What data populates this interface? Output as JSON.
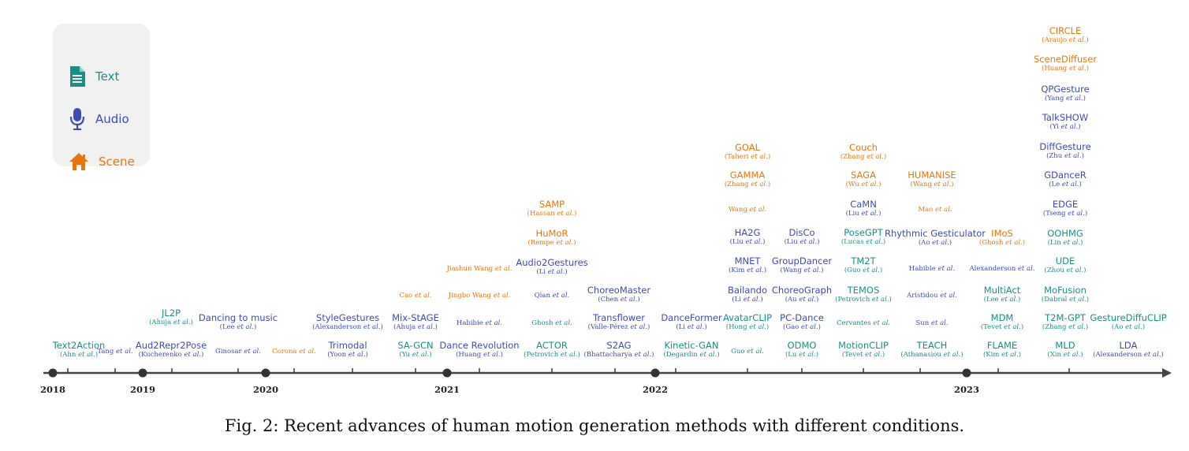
{
  "legend": {
    "items": [
      {
        "label": "Text",
        "icon": "document-icon",
        "color": "#1a8f87"
      },
      {
        "label": "Audio",
        "icon": "microphone-icon",
        "color": "#3d4bb5"
      },
      {
        "label": "Scene",
        "icon": "house-icon",
        "color": "#e8760f"
      }
    ]
  },
  "colors": {
    "text": "#1a8f87",
    "audio": "#3d4bb5",
    "scene": "#e8760f",
    "axis": "#444444"
  },
  "timeline": {
    "years": [
      "2018",
      "2019",
      "2020",
      "2021",
      "2022",
      "2023"
    ],
    "methods": [
      {
        "name": "Text2Action",
        "author": "Ahn",
        "etal": "et al.",
        "type": "text"
      },
      {
        "name": "",
        "author": "Tang",
        "etal": "et al.",
        "type": "audio"
      },
      {
        "name": "Aud2Repr2Pose",
        "author": "Kucherenko",
        "etal": "et al.",
        "type": "audio"
      },
      {
        "name": "JL2P",
        "author": "Ahuja",
        "etal": "et al.",
        "type": "text"
      },
      {
        "name": "Dancing to music",
        "author": "Lee",
        "etal": "et al.",
        "type": "audio"
      },
      {
        "name": "",
        "author": "Ginosar",
        "etal": "et al.",
        "type": "audio"
      },
      {
        "name": "",
        "author": "Corona",
        "etal": "et al.",
        "type": "scene"
      },
      {
        "name": "Trimodal",
        "author": "Yoon",
        "etal": "et al.",
        "type": "audio"
      },
      {
        "name": "StyleGestures",
        "author": "Alexanderson",
        "etal": "et al.",
        "type": "audio"
      },
      {
        "name": "SA-GCN",
        "author": "Yu",
        "etal": "et al.",
        "type": "text"
      },
      {
        "name": "Mix-StAGE",
        "author": "Ahuja",
        "etal": "et al.",
        "type": "audio"
      },
      {
        "name": "",
        "author": "Cao",
        "etal": "et al.",
        "type": "scene"
      },
      {
        "name": "Dance Revolution",
        "author": "Huang",
        "etal": "et al.",
        "type": "audio"
      },
      {
        "name": "",
        "author": "Habibie",
        "etal": "et al.",
        "type": "audio"
      },
      {
        "name": "",
        "author": "Jingbo Wang",
        "etal": "et al.",
        "type": "scene"
      },
      {
        "name": "",
        "author": "Jiashun Wang",
        "etal": "et al.",
        "type": "scene"
      },
      {
        "name": "ACTOR",
        "author": "Petrovich",
        "etal": "et al.",
        "type": "text"
      },
      {
        "name": "",
        "author": "Ghosh",
        "etal": "et al.",
        "type": "text"
      },
      {
        "name": "",
        "author": "Qian",
        "etal": "et al.",
        "type": "audio"
      },
      {
        "name": "Audio2Gestures",
        "author": "Li",
        "etal": "et al.",
        "type": "audio"
      },
      {
        "name": "HuMoR",
        "author": "Rempe",
        "etal": "et al.",
        "type": "scene"
      },
      {
        "name": "SAMP",
        "author": "Hassan",
        "etal": "et al.",
        "type": "scene"
      },
      {
        "name": "S2AG",
        "author": "Bhattacharya",
        "etal": "et al.",
        "type": "audio"
      },
      {
        "name": "Transflower",
        "author": "Valle-Pérez",
        "etal": "et al.",
        "type": "audio"
      },
      {
        "name": "ChoreoMaster",
        "author": "Chen",
        "etal": "et al.",
        "type": "audio"
      },
      {
        "name": "Kinetic-GAN",
        "author": "Degardin",
        "etal": "et al.",
        "type": "text"
      },
      {
        "name": "DanceFormer",
        "author": "Li",
        "etal": "et al.",
        "type": "audio"
      },
      {
        "name": "",
        "author": "Guo",
        "etal": "et al.",
        "type": "text"
      },
      {
        "name": "AvatarCLIP",
        "author": "Hong",
        "etal": "et al.",
        "type": "text"
      },
      {
        "name": "Bailando",
        "author": "Li",
        "etal": "et al.",
        "type": "audio"
      },
      {
        "name": "MNET",
        "author": "Kim",
        "etal": "et al.",
        "type": "audio"
      },
      {
        "name": "HA2G",
        "author": "Liu",
        "etal": "et al.",
        "type": "audio"
      },
      {
        "name": "",
        "author": "Wang",
        "etal": "et al.",
        "type": "scene"
      },
      {
        "name": "GAMMA",
        "author": "Zhang",
        "etal": "et al.",
        "type": "scene"
      },
      {
        "name": "GOAL",
        "author": "Taheri",
        "etal": "et al.",
        "type": "scene"
      },
      {
        "name": "ODMO",
        "author": "Lu",
        "etal": "et al.",
        "type": "text"
      },
      {
        "name": "PC-Dance",
        "author": "Gao",
        "etal": "et al.",
        "type": "audio"
      },
      {
        "name": "ChoreoGraph",
        "author": "Au",
        "etal": "et al.",
        "type": "audio"
      },
      {
        "name": "GroupDancer",
        "author": "Wang",
        "etal": "et al.",
        "type": "audio"
      },
      {
        "name": "DisCo",
        "author": "Liu",
        "etal": "et al.",
        "type": "audio"
      },
      {
        "name": "MotionCLIP",
        "author": "Tevet",
        "etal": "et al.",
        "type": "text"
      },
      {
        "name": "",
        "author": "Cervantes",
        "etal": "et al.",
        "type": "text"
      },
      {
        "name": "TEMOS",
        "author": "Petrovich",
        "etal": "et al.",
        "type": "text"
      },
      {
        "name": "TM2T",
        "author": "Guo",
        "etal": "et al.",
        "type": "text"
      },
      {
        "name": "PoseGPT",
        "author": "Lucas",
        "etal": "et al.",
        "type": "text"
      },
      {
        "name": "CaMN",
        "author": "Liu",
        "etal": "et al.",
        "type": "audio"
      },
      {
        "name": "SAGA",
        "author": "Wu",
        "etal": "et al.",
        "type": "scene"
      },
      {
        "name": "Couch",
        "author": "Zhang",
        "etal": "et al.",
        "type": "scene"
      },
      {
        "name": "TEACH",
        "author": "Athanasiou",
        "etal": "et al.",
        "type": "text"
      },
      {
        "name": "",
        "author": "Sun",
        "etal": "et al.",
        "type": "audio"
      },
      {
        "name": "",
        "author": "Aristidou",
        "etal": "et al.",
        "type": "audio"
      },
      {
        "name": "",
        "author": "Habibie",
        "etal": "et al.",
        "type": "audio"
      },
      {
        "name": "Rhythmic Gesticulator",
        "author": "Ao",
        "etal": "et al.",
        "type": "audio"
      },
      {
        "name": "",
        "author": "Mao",
        "etal": "et al.",
        "type": "scene"
      },
      {
        "name": "HUMANISE",
        "author": "Wang",
        "etal": "et al.",
        "type": "scene"
      },
      {
        "name": "FLAME",
        "author": "Kim",
        "etal": "et al.",
        "type": "text"
      },
      {
        "name": "MDM",
        "author": "Tevet",
        "etal": "et al.",
        "type": "text"
      },
      {
        "name": "MultiAct",
        "author": "Lee",
        "etal": "et al.",
        "type": "text"
      },
      {
        "name": "",
        "author": "Alexanderson",
        "etal": "et al.",
        "type": "audio"
      },
      {
        "name": "IMoS",
        "author": "Ghosh",
        "etal": "et al.",
        "type": "scene"
      },
      {
        "name": "MLD",
        "author": "Xin",
        "etal": "et al.",
        "type": "text"
      },
      {
        "name": "T2M-GPT",
        "author": "Zhang",
        "etal": "et al.",
        "type": "text"
      },
      {
        "name": "MoFusion",
        "author": "Dabral",
        "etal": "et al.",
        "type": "text"
      },
      {
        "name": "UDE",
        "author": "Zhou",
        "etal": "et al.",
        "type": "text"
      },
      {
        "name": "OOHMG",
        "author": "Lin",
        "etal": "et al.",
        "type": "text"
      },
      {
        "name": "EDGE",
        "author": "Tseng",
        "etal": "et al.",
        "type": "audio"
      },
      {
        "name": "GDanceR",
        "author": "Le",
        "etal": "et al.",
        "type": "audio"
      },
      {
        "name": "DiffGesture",
        "author": "Zhu",
        "etal": "et al.",
        "type": "audio"
      },
      {
        "name": "TalkSHOW",
        "author": "Yi",
        "etal": "et al.",
        "type": "audio"
      },
      {
        "name": "QPGesture",
        "author": "Yang",
        "etal": "et al.",
        "type": "audio"
      },
      {
        "name": "SceneDiffuser",
        "author": "Huang",
        "etal": "et al.",
        "type": "scene"
      },
      {
        "name": "CIRCLE",
        "author": "Araujo",
        "etal": "et al.",
        "type": "scene"
      },
      {
        "name": "LDA",
        "author": "Alexanderson",
        "etal": "et al.",
        "type": "audio"
      },
      {
        "name": "GestureDiffuCLIP",
        "author": "Ao",
        "etal": "et al.",
        "type": "text"
      }
    ]
  },
  "caption": "Fig. 2: Recent advances of human motion generation methods with different conditions."
}
